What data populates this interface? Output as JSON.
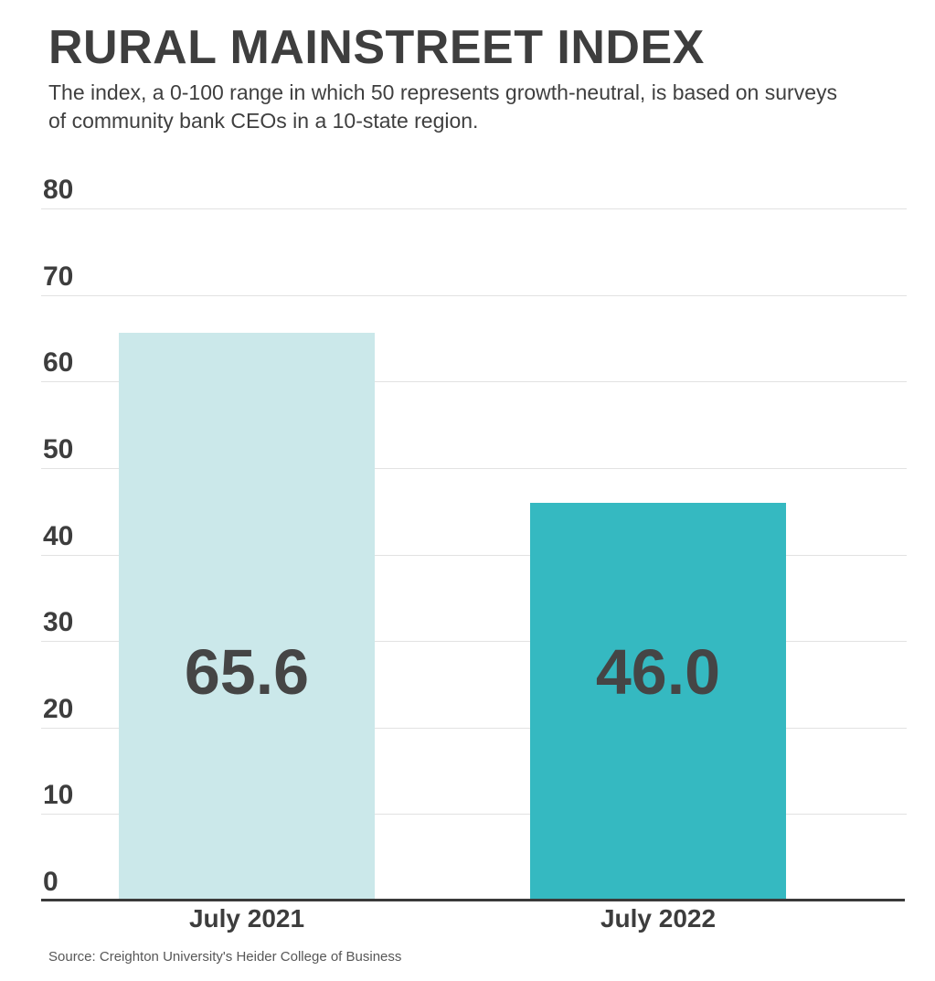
{
  "header": {
    "title": "RURAL MAINSTREET INDEX",
    "subtitle": "The index, a 0-100 range in which 50 represents growth-neutral, is based on surveys of community bank CEOs in a 10-state region."
  },
  "chart_data": {
    "type": "bar",
    "title": "RURAL MAINSTREET INDEX",
    "subtitle": "The index, a 0-100 range in which 50 represents growth-neutral, is based on surveys of community bank CEOs in a 10-state region.",
    "categories": [
      "July 2021",
      "July 2022"
    ],
    "values": [
      65.6,
      46.0
    ],
    "value_labels": [
      "65.6",
      "46.0"
    ],
    "xlabel": "",
    "ylabel": "",
    "ylim": [
      0,
      80
    ],
    "ytick_step": 10,
    "ytick_labels": [
      "0",
      "10",
      "20",
      "30",
      "40",
      "50",
      "60",
      "70",
      "80"
    ],
    "grid": true,
    "legend": false,
    "legend_position": "none",
    "bar_colors": [
      "#cbe8ea",
      "#35b9c1"
    ],
    "value_label_color": "#454545",
    "gridline_color": "#e2e2e2",
    "axis_color": "#3a3a3a",
    "text_color": "#3d3d3d"
  },
  "footer": {
    "source": "Source: Creighton University's Heider College of Business"
  }
}
